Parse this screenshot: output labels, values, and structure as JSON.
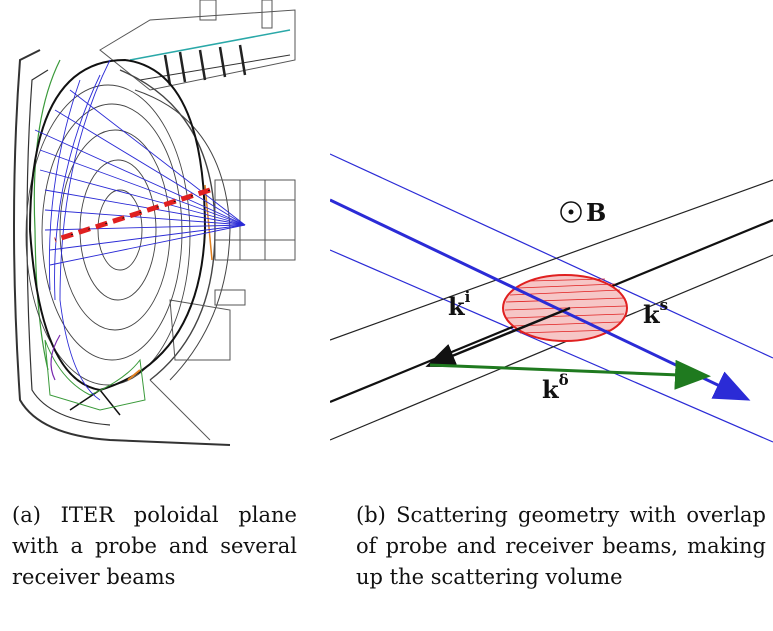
{
  "captions": {
    "a": "(a) ITER poloidal plane with a probe and several receiver beams",
    "b": "(b) Scattering geometry with overlap of probe and receiver beams, making up the scattering volume"
  },
  "labels": {
    "B": "B",
    "ki_base": "k",
    "ki_sup": "i",
    "ks_base": "k",
    "ks_sup": "s",
    "kd_base": "k",
    "kd_sup": "δ"
  },
  "colors": {
    "beam": "#2b2bd6",
    "probe": "#e02020",
    "volume": "#e02020",
    "k_delta": "#1f7a1f",
    "structure": "#222222"
  }
}
